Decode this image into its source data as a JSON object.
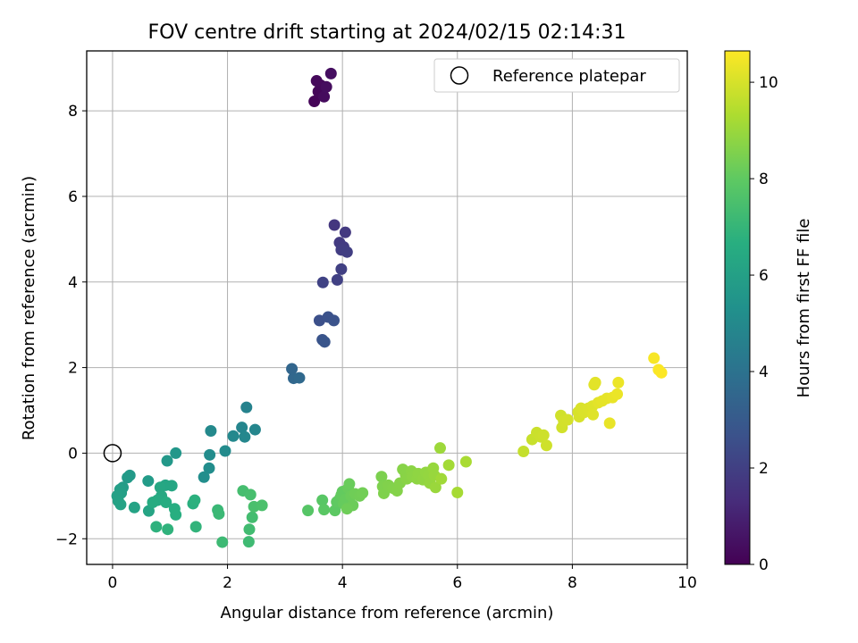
{
  "chart_data": {
    "type": "scatter",
    "title": "FOV centre drift starting at 2024/02/15 02:14:31",
    "xlabel": "Angular distance from reference (arcmin)",
    "ylabel": "Rotation from reference (arcmin)",
    "xlim": [
      -0.45,
      10
    ],
    "ylim": [
      -2.6,
      9.4
    ],
    "xticks": [
      0,
      2,
      4,
      6,
      8,
      10
    ],
    "yticks": [
      -2,
      0,
      2,
      4,
      6,
      8
    ],
    "grid": true,
    "legend": {
      "placement": "upper right",
      "entries": [
        "Reference platepar"
      ]
    },
    "colorbar": {
      "label": "Hours from first FF file",
      "colormap": "viridis",
      "range": [
        0,
        10.65
      ],
      "ticks": [
        0,
        2,
        4,
        6,
        8,
        10
      ]
    },
    "reference_point": {
      "x": 0,
      "y": 0,
      "label": "Reference platepar"
    },
    "points": [
      [
        3.51,
        8.22,
        0.1
      ],
      [
        3.58,
        8.45,
        0.15
      ],
      [
        3.62,
        8.6,
        0.2
      ],
      [
        3.55,
        8.7,
        0.25
      ],
      [
        3.68,
        8.33,
        0.3
      ],
      [
        3.72,
        8.56,
        0.35
      ],
      [
        3.8,
        8.87,
        0.4
      ],
      [
        3.86,
        5.33,
        1.7
      ],
      [
        4.05,
        5.16,
        1.75
      ],
      [
        3.95,
        4.92,
        1.8
      ],
      [
        4.02,
        4.82,
        1.85
      ],
      [
        3.98,
        4.75,
        1.9
      ],
      [
        4.08,
        4.7,
        1.95
      ],
      [
        3.98,
        4.3,
        2.0
      ],
      [
        3.91,
        4.05,
        2.05
      ],
      [
        3.66,
        3.99,
        2.1
      ],
      [
        3.6,
        3.1,
        2.6
      ],
      [
        3.75,
        3.18,
        2.65
      ],
      [
        3.85,
        3.1,
        2.7
      ],
      [
        3.65,
        2.65,
        2.75
      ],
      [
        3.69,
        2.6,
        2.8
      ],
      [
        3.12,
        1.97,
        3.5
      ],
      [
        3.15,
        1.75,
        3.55
      ],
      [
        3.25,
        1.76,
        3.6
      ],
      [
        2.33,
        1.07,
        4.7
      ],
      [
        2.25,
        0.6,
        4.8
      ],
      [
        2.48,
        0.55,
        4.85
      ],
      [
        2.3,
        0.38,
        4.9
      ],
      [
        2.1,
        0.4,
        4.95
      ],
      [
        1.71,
        0.52,
        5.0
      ],
      [
        1.96,
        0.05,
        5.05
      ],
      [
        1.69,
        -0.04,
        5.1
      ],
      [
        1.68,
        -0.35,
        5.15
      ],
      [
        1.59,
        -0.56,
        5.2
      ],
      [
        1.1,
        0.0,
        5.6
      ],
      [
        0.95,
        -0.18,
        5.65
      ],
      [
        0.3,
        -0.52,
        5.7
      ],
      [
        0.26,
        -0.57,
        5.75
      ],
      [
        0.62,
        -0.65,
        5.8
      ],
      [
        0.18,
        -0.8,
        5.85
      ],
      [
        0.13,
        -0.85,
        5.9
      ],
      [
        0.15,
        -0.93,
        5.95
      ],
      [
        0.08,
        -1.0,
        6.0
      ],
      [
        0.1,
        -1.12,
        6.05
      ],
      [
        0.14,
        -1.2,
        6.1
      ],
      [
        0.38,
        -1.27,
        6.15
      ],
      [
        0.63,
        -1.35,
        6.2
      ],
      [
        0.92,
        -0.75,
        6.25
      ],
      [
        1.03,
        -0.76,
        6.3
      ],
      [
        0.83,
        -0.8,
        6.35
      ],
      [
        0.85,
        -1.0,
        6.4
      ],
      [
        0.78,
        -1.1,
        6.45
      ],
      [
        0.7,
        -1.15,
        6.5
      ],
      [
        0.93,
        -1.15,
        6.55
      ],
      [
        1.08,
        -1.3,
        6.6
      ],
      [
        1.1,
        -1.44,
        6.65
      ],
      [
        1.4,
        -1.18,
        6.7
      ],
      [
        1.43,
        -1.1,
        6.75
      ],
      [
        0.76,
        -1.72,
        6.8
      ],
      [
        0.96,
        -1.78,
        6.85
      ],
      [
        1.45,
        -1.72,
        6.9
      ],
      [
        1.83,
        -1.33,
        7.1
      ],
      [
        1.85,
        -1.42,
        7.15
      ],
      [
        1.91,
        -2.08,
        7.2
      ],
      [
        2.37,
        -2.07,
        7.25
      ],
      [
        2.38,
        -1.78,
        7.3
      ],
      [
        2.43,
        -1.5,
        7.35
      ],
      [
        2.27,
        -0.88,
        7.4
      ],
      [
        2.4,
        -0.97,
        7.45
      ],
      [
        2.46,
        -1.25,
        7.5
      ],
      [
        2.6,
        -1.22,
        7.55
      ],
      [
        3.4,
        -1.34,
        7.8
      ],
      [
        3.65,
        -1.1,
        7.85
      ],
      [
        3.68,
        -1.32,
        7.9
      ],
      [
        3.87,
        -1.34,
        7.95
      ],
      [
        3.9,
        -1.14,
        8.0
      ],
      [
        3.96,
        -1.05,
        8.02
      ],
      [
        4.0,
        -0.9,
        8.05
      ],
      [
        3.98,
        -0.98,
        8.07
      ],
      [
        4.02,
        -1.18,
        8.1
      ],
      [
        4.05,
        -1.08,
        8.12
      ],
      [
        4.1,
        -0.82,
        8.15
      ],
      [
        4.12,
        -0.72,
        8.17
      ],
      [
        4.15,
        -1.0,
        8.2
      ],
      [
        4.18,
        -1.22,
        8.22
      ],
      [
        4.08,
        -1.3,
        8.25
      ],
      [
        4.22,
        -0.95,
        8.27
      ],
      [
        4.3,
        -1.0,
        8.3
      ],
      [
        4.35,
        -0.93,
        8.32
      ],
      [
        4.68,
        -0.55,
        8.5
      ],
      [
        4.7,
        -0.78,
        8.52
      ],
      [
        4.72,
        -0.94,
        8.55
      ],
      [
        4.8,
        -0.75,
        8.57
      ],
      [
        4.88,
        -0.82,
        8.6
      ],
      [
        4.95,
        -0.88,
        8.62
      ],
      [
        5.0,
        -0.7,
        8.65
      ],
      [
        5.05,
        -0.38,
        8.67
      ],
      [
        5.1,
        -0.5,
        8.7
      ],
      [
        5.12,
        -0.6,
        8.72
      ],
      [
        5.2,
        -0.42,
        8.75
      ],
      [
        5.22,
        -0.55,
        8.77
      ],
      [
        5.3,
        -0.6,
        8.8
      ],
      [
        5.32,
        -0.48,
        8.82
      ],
      [
        5.4,
        -0.62,
        8.85
      ],
      [
        5.45,
        -0.45,
        8.87
      ],
      [
        5.5,
        -0.52,
        8.9
      ],
      [
        5.52,
        -0.7,
        8.92
      ],
      [
        5.58,
        -0.35,
        8.95
      ],
      [
        5.6,
        -0.52,
        8.97
      ],
      [
        5.62,
        -0.8,
        9.0
      ],
      [
        5.7,
        0.12,
        9.05
      ],
      [
        5.72,
        -0.6,
        9.1
      ],
      [
        5.85,
        -0.28,
        9.15
      ],
      [
        6.0,
        -0.92,
        9.2
      ],
      [
        6.15,
        -0.2,
        9.25
      ],
      [
        7.15,
        0.04,
        9.7
      ],
      [
        7.3,
        0.32,
        9.75
      ],
      [
        7.38,
        0.48,
        9.8
      ],
      [
        7.45,
        0.38,
        9.82
      ],
      [
        7.5,
        0.42,
        9.85
      ],
      [
        7.55,
        0.18,
        9.87
      ],
      [
        7.8,
        0.88,
        9.9
      ],
      [
        7.82,
        0.6,
        9.92
      ],
      [
        7.85,
        0.75,
        9.95
      ],
      [
        7.92,
        0.78,
        9.97
      ],
      [
        8.1,
        0.96,
        10.0
      ],
      [
        8.12,
        0.85,
        10.02
      ],
      [
        8.15,
        1.05,
        10.05
      ],
      [
        8.2,
        0.95,
        10.07
      ],
      [
        8.28,
        1.05,
        10.1
      ],
      [
        8.35,
        1.1,
        10.12
      ],
      [
        8.36,
        0.9,
        10.15
      ],
      [
        8.38,
        1.6,
        10.17
      ],
      [
        8.4,
        1.65,
        10.2
      ],
      [
        8.45,
        1.18,
        10.22
      ],
      [
        8.52,
        1.22,
        10.25
      ],
      [
        8.6,
        1.28,
        10.27
      ],
      [
        8.65,
        0.7,
        10.3
      ],
      [
        8.7,
        1.3,
        10.32
      ],
      [
        8.78,
        1.38,
        10.35
      ],
      [
        8.8,
        1.65,
        10.37
      ],
      [
        9.42,
        2.22,
        10.55
      ],
      [
        9.5,
        1.95,
        10.6
      ],
      [
        9.55,
        1.88,
        10.63
      ]
    ]
  }
}
